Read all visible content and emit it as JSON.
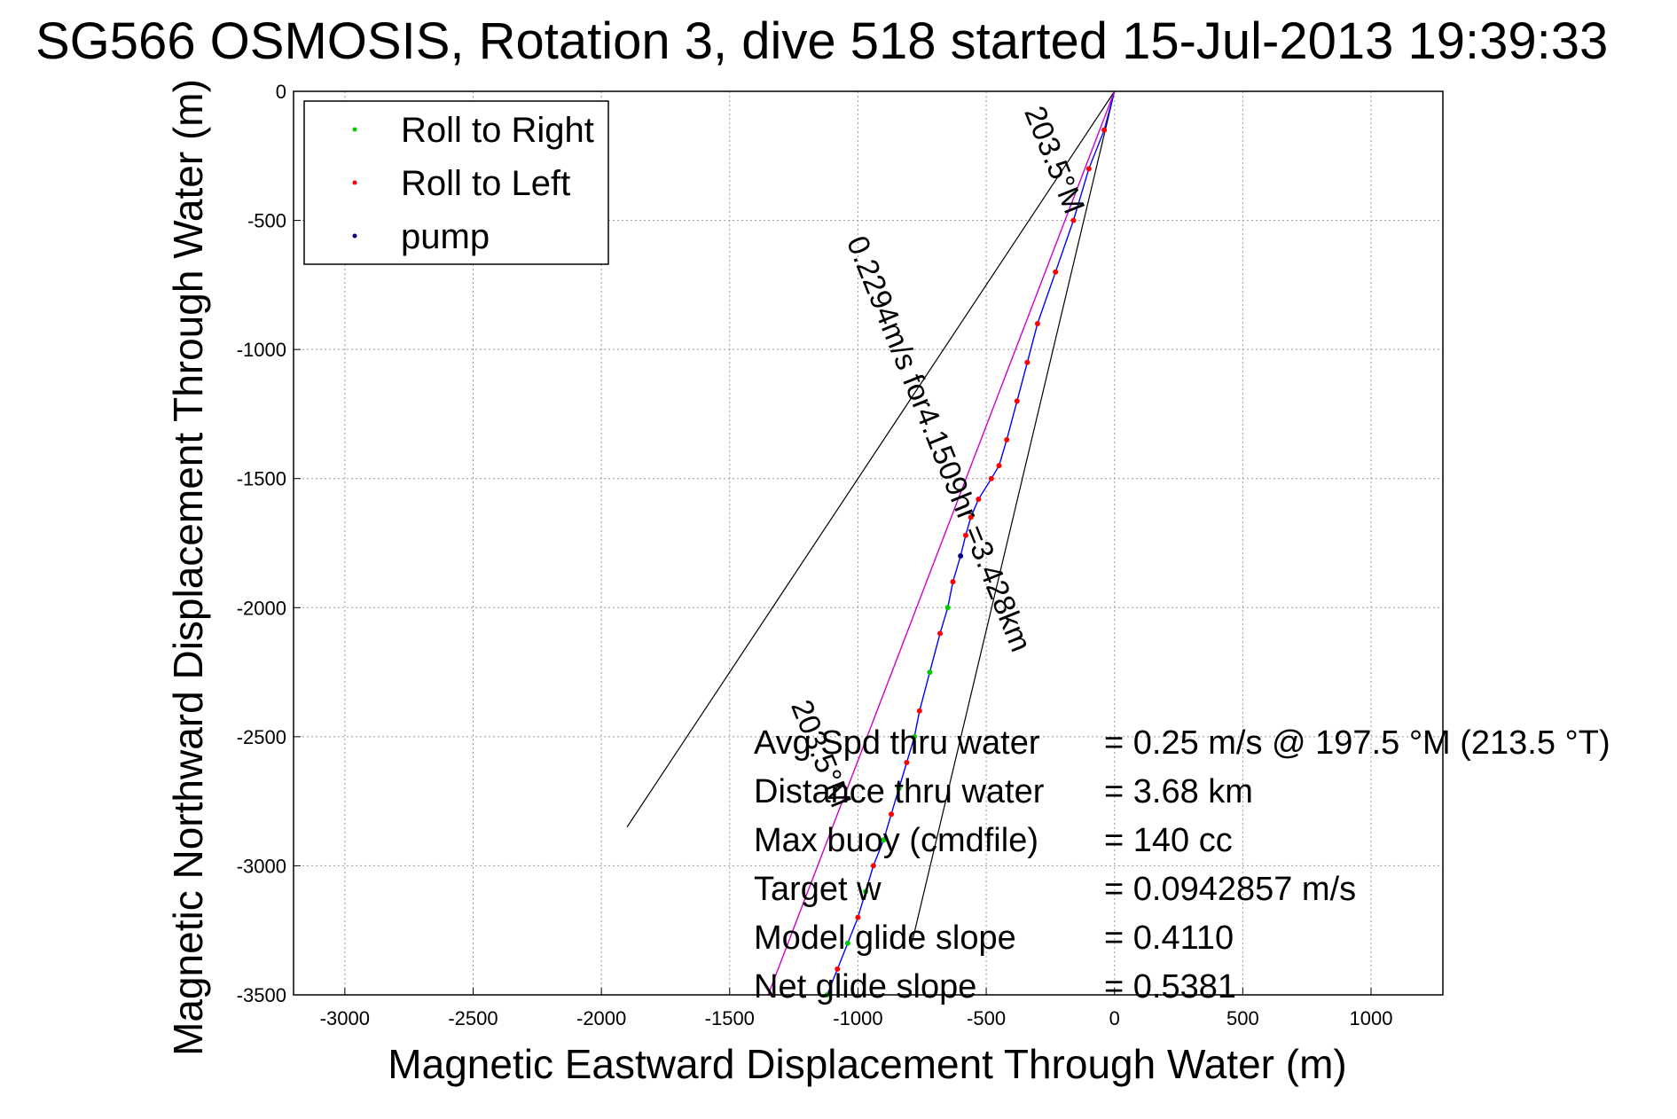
{
  "chart_data": {
    "type": "line",
    "title": "SG566 OSMOSIS, Rotation 3, dive 518 started 15-Jul-2013 19:39:33",
    "xlabel": "Magnetic Eastward Displacement Through Water (m)",
    "ylabel": "Magnetic Northward Displacement Through Water (m)",
    "xlim": [
      -3200,
      1280
    ],
    "ylim": [
      -3500,
      0
    ],
    "xticks": [
      -3000,
      -2500,
      -2000,
      -1500,
      -1000,
      -500,
      0,
      500,
      1000
    ],
    "yticks": [
      0,
      -500,
      -1000,
      -1500,
      -2000,
      -2500,
      -3000,
      -3500
    ],
    "grid": true,
    "legend_position": "top-left",
    "legend": [
      {
        "label": "Roll to Right",
        "color": "#00cc00"
      },
      {
        "label": "Roll to Left",
        "color": "#ff0000"
      },
      {
        "label": "pump",
        "color": "#000080"
      }
    ],
    "series": [
      {
        "color": "#0000ff",
        "x": [
          0,
          -40,
          -100,
          -160,
          -230,
          -300,
          -340,
          -380,
          -420,
          -450,
          -480,
          -530,
          -560,
          -580,
          -600,
          -630,
          -650,
          -680,
          -720,
          -760,
          -780,
          -810,
          -840,
          -870,
          -900,
          -940,
          -970,
          -1000,
          -1040,
          -1080,
          -1120
        ],
        "y": [
          0,
          -150,
          -300,
          -500,
          -700,
          -900,
          -1050,
          -1200,
          -1350,
          -1450,
          -1500,
          -1580,
          -1650,
          -1720,
          -1800,
          -1900,
          -2000,
          -2100,
          -2250,
          -2400,
          -2500,
          -2600,
          -2700,
          -2800,
          -2900,
          -3000,
          -3100,
          -3200,
          -3300,
          -3400,
          -3500
        ]
      },
      {
        "color": "#cc00cc",
        "x": [
          0,
          -1350
        ],
        "y": [
          0,
          -3500
        ]
      }
    ],
    "reference_lines": [
      {
        "x": [
          0,
          -1900
        ],
        "y": [
          0,
          -2850
        ],
        "color": "#000000"
      },
      {
        "x": [
          0,
          -790
        ],
        "y": [
          0,
          -3300
        ],
        "color": "#000000"
      }
    ],
    "annotations": [
      {
        "text": "203.5°M",
        "x": -270,
        "y": -280,
        "rotation": 68
      },
      {
        "text": "0.2294m/s for4.1509hr =3.428km",
        "x": -720,
        "y": -1380,
        "rotation": 68
      },
      {
        "text": "203.5°M",
        "x": -1180,
        "y": -2580,
        "rotation": 68
      }
    ],
    "stats": [
      {
        "label": "Avg Spd thru water",
        "value": "=  0.25 m/s @ 197.5 °M (213.5 °T)"
      },
      {
        "label": "Distance thru water",
        "value": "=  3.68 km"
      },
      {
        "label": "Max buoy (cmdfile)",
        "value": "= 140 cc"
      },
      {
        "label": "Target w",
        "value": "= 0.0942857 m/s"
      },
      {
        "label": "Model glide slope",
        "value": "= 0.4110"
      },
      {
        "label": "Net glide slope",
        "value": "= 0.5381"
      }
    ]
  }
}
